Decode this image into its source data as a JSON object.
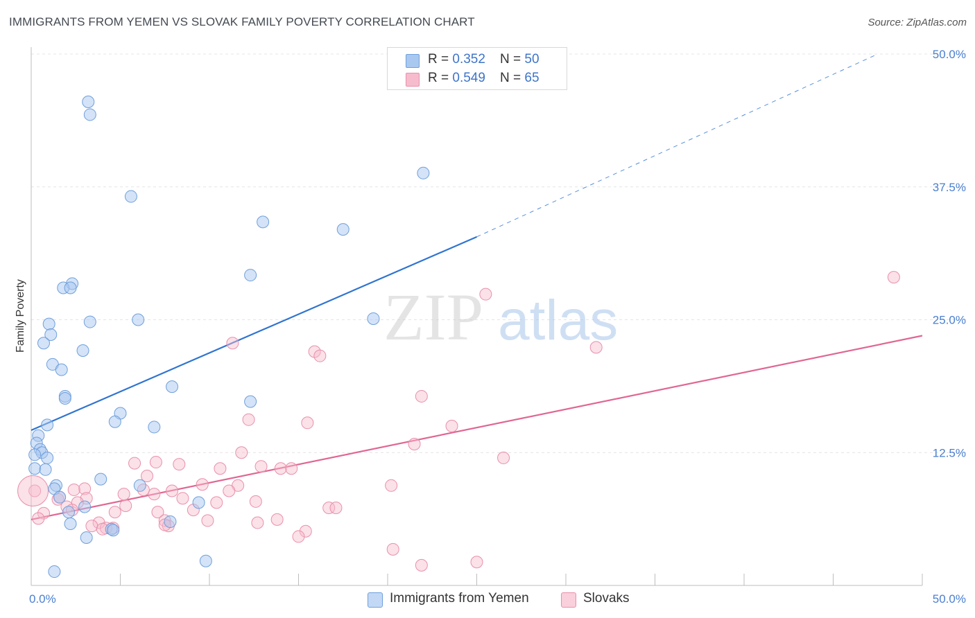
{
  "title": "IMMIGRANTS FROM YEMEN VS SLOVAK FAMILY POVERTY CORRELATION CHART",
  "source": "Source: ZipAtlas.com",
  "watermark": {
    "part1": "ZIP",
    "part2": "atlas"
  },
  "legend": {
    "rows": [
      {
        "r_label": "R = ",
        "r_value": "0.352",
        "n_label": "N = ",
        "n_value": "50"
      },
      {
        "r_label": "R = ",
        "r_value": "0.549",
        "n_label": "N = ",
        "n_value": "65"
      }
    ]
  },
  "bottom_legend": {
    "series1": "Immigrants from Yemen",
    "series2": "Slovaks"
  },
  "colors": {
    "blue_fill": "#a9c8f0",
    "blue_stroke": "#6e9fdc",
    "blue_line": "#2f74d0",
    "pink_fill": "#f6bccd",
    "pink_stroke": "#e98fab",
    "pink_line": "#e06693",
    "grid": "#e4e4e4",
    "axis_text": "#4a7fd0"
  },
  "chart_data": {
    "type": "scatter",
    "title": "IMMIGRANTS FROM YEMEN VS SLOVAK FAMILY POVERTY CORRELATION CHART",
    "ylabel": "Family Poverty",
    "xlabel": "",
    "xlim": [
      0,
      50
    ],
    "ylim": [
      0,
      50
    ],
    "x_tick_labels": [
      "0.0%",
      "50.0%"
    ],
    "y_ticks": [
      12.5,
      25.0,
      37.5,
      50.0
    ],
    "y_tick_labels": [
      "12.5%",
      "25.0%",
      "37.5%",
      "50.0%"
    ],
    "grid": true,
    "series": [
      {
        "name": "Immigrants from Yemen",
        "R": 0.352,
        "N": 50,
        "trend": {
          "x0": 0,
          "y0": 14.6,
          "x1": 25,
          "y1": 32.8,
          "dash_to_x": 47.5,
          "dash_to_y": 50.0
        },
        "points": [
          [
            3.2,
            45.5
          ],
          [
            3.3,
            44.3
          ],
          [
            22.0,
            38.8
          ],
          [
            5.6,
            36.6
          ],
          [
            13.0,
            34.2
          ],
          [
            17.5,
            33.5
          ],
          [
            12.3,
            29.2
          ],
          [
            2.3,
            28.4
          ],
          [
            1.8,
            28.0
          ],
          [
            2.2,
            28.0
          ],
          [
            3.3,
            24.8
          ],
          [
            6.0,
            25.0
          ],
          [
            19.2,
            25.1
          ],
          [
            1.0,
            24.6
          ],
          [
            1.1,
            23.6
          ],
          [
            0.7,
            22.8
          ],
          [
            2.9,
            22.1
          ],
          [
            1.2,
            20.8
          ],
          [
            1.7,
            20.3
          ],
          [
            7.9,
            18.7
          ],
          [
            1.9,
            17.8
          ],
          [
            1.9,
            17.6
          ],
          [
            12.3,
            17.3
          ],
          [
            5.0,
            16.2
          ],
          [
            4.7,
            15.4
          ],
          [
            0.9,
            15.1
          ],
          [
            6.9,
            14.9
          ],
          [
            0.4,
            14.1
          ],
          [
            0.3,
            13.4
          ],
          [
            0.5,
            12.8
          ],
          [
            0.6,
            12.5
          ],
          [
            0.2,
            12.3
          ],
          [
            0.9,
            12.0
          ],
          [
            0.2,
            11.0
          ],
          [
            0.8,
            10.9
          ],
          [
            3.9,
            10.0
          ],
          [
            1.4,
            9.4
          ],
          [
            6.1,
            9.4
          ],
          [
            1.3,
            9.1
          ],
          [
            1.6,
            8.3
          ],
          [
            9.4,
            7.8
          ],
          [
            3.0,
            7.4
          ],
          [
            2.1,
            6.9
          ],
          [
            7.8,
            6.0
          ],
          [
            2.2,
            5.8
          ],
          [
            4.5,
            5.3
          ],
          [
            4.6,
            5.2
          ],
          [
            3.1,
            4.5
          ],
          [
            9.8,
            2.3
          ],
          [
            1.3,
            1.3
          ]
        ]
      },
      {
        "name": "Slovaks",
        "R": 0.549,
        "N": 65,
        "trend": {
          "x0": 0,
          "y0": 6.2,
          "x1": 50,
          "y1": 23.5
        },
        "points": [
          [
            48.4,
            29.0
          ],
          [
            25.5,
            27.4
          ],
          [
            31.7,
            22.4
          ],
          [
            11.3,
            22.8
          ],
          [
            15.9,
            22.0
          ],
          [
            16.2,
            21.6
          ],
          [
            21.9,
            17.8
          ],
          [
            12.2,
            15.6
          ],
          [
            15.5,
            15.3
          ],
          [
            23.6,
            15.0
          ],
          [
            21.5,
            13.3
          ],
          [
            11.8,
            12.5
          ],
          [
            26.5,
            12.0
          ],
          [
            5.8,
            11.5
          ],
          [
            7.0,
            11.6
          ],
          [
            8.3,
            11.4
          ],
          [
            12.9,
            11.2
          ],
          [
            10.6,
            11.0
          ],
          [
            14.0,
            11.0
          ],
          [
            14.6,
            11.0
          ],
          [
            6.5,
            10.3
          ],
          [
            9.6,
            9.5
          ],
          [
            11.6,
            9.4
          ],
          [
            20.2,
            9.4
          ],
          [
            3.0,
            9.1
          ],
          [
            2.4,
            9.0
          ],
          [
            11.1,
            8.9
          ],
          [
            7.9,
            8.9
          ],
          [
            5.2,
            8.6
          ],
          [
            6.9,
            8.6
          ],
          [
            0.2,
            8.9
          ],
          [
            1.5,
            8.1
          ],
          [
            1.6,
            8.3
          ],
          [
            3.1,
            8.2
          ],
          [
            8.5,
            8.2
          ],
          [
            2.6,
            7.8
          ],
          [
            10.4,
            7.8
          ],
          [
            12.6,
            7.9
          ],
          [
            5.3,
            7.5
          ],
          [
            2.0,
            7.4
          ],
          [
            16.7,
            7.3
          ],
          [
            17.1,
            7.3
          ],
          [
            9.1,
            7.1
          ],
          [
            2.3,
            7.1
          ],
          [
            7.1,
            6.9
          ],
          [
            4.7,
            6.9
          ],
          [
            0.7,
            6.8
          ],
          [
            9.9,
            6.1
          ],
          [
            0.4,
            6.3
          ],
          [
            7.5,
            6.1
          ],
          [
            13.8,
            6.2
          ],
          [
            3.8,
            5.9
          ],
          [
            12.7,
            5.9
          ],
          [
            3.4,
            5.6
          ],
          [
            7.7,
            5.6
          ],
          [
            4.2,
            5.4
          ],
          [
            4.0,
            5.3
          ],
          [
            15.4,
            5.1
          ],
          [
            15.0,
            4.6
          ],
          [
            20.3,
            3.4
          ],
          [
            25.0,
            2.2
          ],
          [
            21.9,
            1.9
          ],
          [
            4.6,
            5.4
          ],
          [
            7.5,
            5.7
          ],
          [
            6.3,
            9.0
          ]
        ]
      }
    ]
  }
}
